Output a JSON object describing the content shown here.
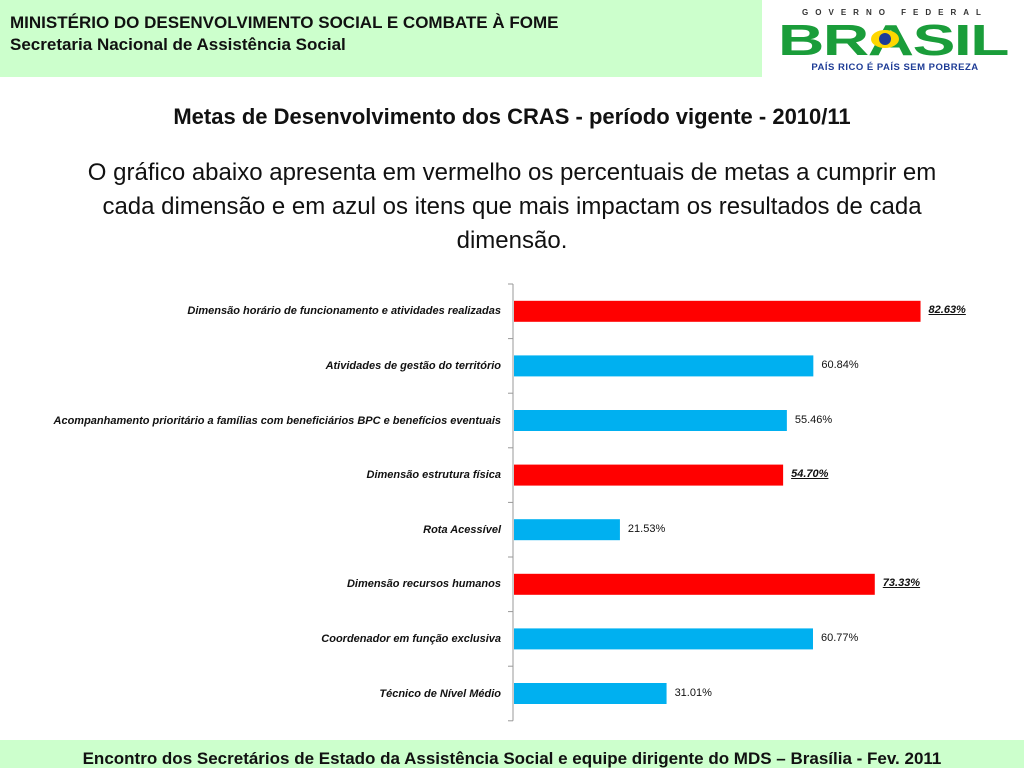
{
  "header": {
    "ministry": "MINISTÉRIO DO DESENVOLVIMENTO SOCIAL E COMBATE À FOME",
    "secretariat": "Secretaria Nacional de Assistência Social"
  },
  "logo": {
    "top_text": "GOVERNO FEDERAL",
    "word": "BRASIL",
    "slogan": "PAÍS RICO É PAÍS SEM POBREZA"
  },
  "slide": {
    "title": "Metas de Desenvolvimento dos CRAS - período vigente - 2010/11",
    "description": "O gráfico abaixo apresenta em vermelho os percentuais de metas a cumprir em cada dimensão e em azul os itens que mais impactam os resultados de cada dimensão."
  },
  "chart_data": {
    "type": "bar",
    "orientation": "horizontal",
    "xlim": [
      0,
      100
    ],
    "grid": false,
    "categories": [
      "Dimensão horário de funcionamento e atividades realizadas",
      "Atividades de gestão do território",
      "Acompanhamento prioritário a famílias com beneficiários BPC e benefícios eventuais",
      "Dimensão estrutura física",
      "Rota Acessível",
      "Dimensão recursos humanos",
      "Coordenador em função exclusiva",
      "Técnico de Nível Médio"
    ],
    "values": [
      82.63,
      60.84,
      55.46,
      54.7,
      21.53,
      73.33,
      60.77,
      31.01
    ],
    "value_labels": [
      "82.63%",
      "60.84%",
      "55.46%",
      "54.70%",
      "21.53%",
      "73.33%",
      "60.77%",
      "31.01%"
    ],
    "is_target": [
      true,
      false,
      false,
      true,
      false,
      true,
      false,
      false
    ],
    "colors": {
      "target": "#ff0000",
      "item": "#00b0f0"
    }
  },
  "footer": {
    "text": "Encontro dos Secretários de Estado da Assistência Social e equipe dirigente do MDS – Brasília - Fev. 2011"
  }
}
